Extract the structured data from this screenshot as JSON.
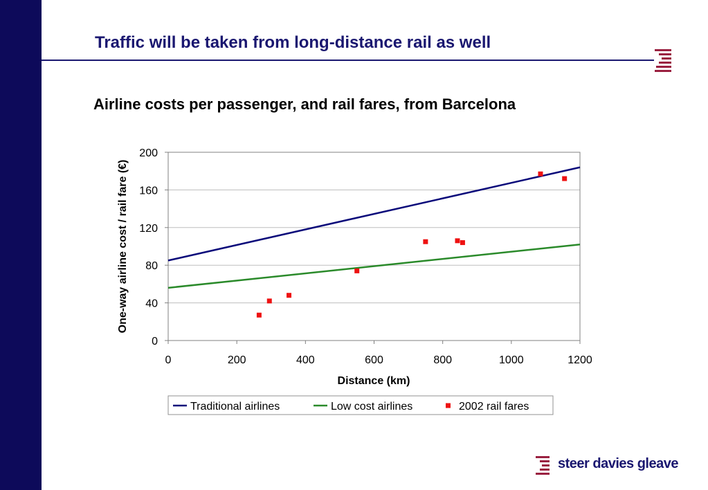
{
  "slide": {
    "title": "Traffic will be taken from long-distance rail as well",
    "chart_heading": "Airline costs per passenger, and rail fares, from Barcelona",
    "brand": "steer davies gleave"
  },
  "colors": {
    "sidebar": "#0d0a5a",
    "title": "#1a1770",
    "traditional": "#0a0a7a",
    "lowcost": "#2a8a2a",
    "rail": "#ee1111",
    "brand_mark": "#9a2040"
  },
  "chart_data": {
    "type": "scatter",
    "xlabel": "Distance (km)",
    "ylabel": "One-way airline cost / rail fare (€)",
    "xlim": [
      0,
      1200
    ],
    "ylim": [
      0,
      200
    ],
    "xticks": [
      0,
      200,
      400,
      600,
      800,
      1000,
      1200
    ],
    "yticks": [
      0,
      40,
      80,
      120,
      160,
      200
    ],
    "grid": "horizontal",
    "legend_position": "bottom",
    "series": [
      {
        "name": "Traditional airlines",
        "kind": "line",
        "points": [
          [
            0,
            85
          ],
          [
            1200,
            184
          ]
        ]
      },
      {
        "name": "Low cost airlines",
        "kind": "line",
        "points": [
          [
            0,
            56
          ],
          [
            1200,
            102
          ]
        ]
      },
      {
        "name": "2002 rail fares",
        "kind": "marker",
        "points": [
          [
            265,
            27
          ],
          [
            295,
            42
          ],
          [
            352,
            48
          ],
          [
            550,
            74
          ],
          [
            750,
            105
          ],
          [
            843,
            106
          ],
          [
            858,
            104
          ],
          [
            1085,
            177
          ],
          [
            1155,
            172
          ]
        ]
      }
    ]
  }
}
